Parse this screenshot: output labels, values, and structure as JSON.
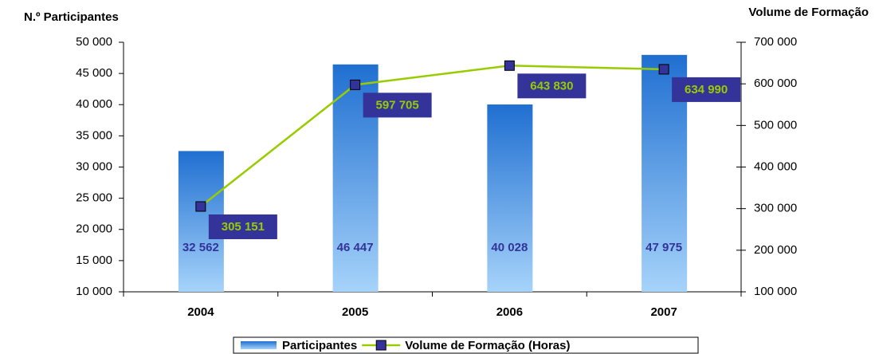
{
  "chart_data": {
    "type": "combo",
    "y_label": "N.º Participantes",
    "y2_label": "Volume de Formação",
    "categories": [
      "2004",
      "2005",
      "2006",
      "2007"
    ],
    "series": [
      {
        "name": "Participantes",
        "type": "bar",
        "color": "#1f6fd1",
        "values": [
          32562,
          46447,
          40028,
          47975
        ],
        "value_labels": [
          "32 562",
          "46 447",
          "40 028",
          "47 975"
        ]
      },
      {
        "name": "Volume de Formação (Horas)",
        "type": "line",
        "axis": "y2",
        "color": "#99cc00",
        "marker_color": "#333399",
        "values": [
          305151,
          597705,
          643830,
          634990
        ],
        "value_labels": [
          "305 151",
          "597 705",
          "643 830",
          "634 990"
        ]
      }
    ],
    "ylim": [
      10000,
      50000
    ],
    "yticks": [
      {
        "value": 10000,
        "label": "10 000"
      },
      {
        "value": 15000,
        "label": "15 000"
      },
      {
        "value": 20000,
        "label": "20 000"
      },
      {
        "value": 25000,
        "label": "25 000"
      },
      {
        "value": 30000,
        "label": "30 000"
      },
      {
        "value": 35000,
        "label": "35 000"
      },
      {
        "value": 40000,
        "label": "40 000"
      },
      {
        "value": 45000,
        "label": "45 000"
      },
      {
        "value": 50000,
        "label": "50 000"
      }
    ],
    "y2lim": [
      100000,
      700000
    ],
    "y2ticks": [
      {
        "value": 100000,
        "label": "100 000"
      },
      {
        "value": 200000,
        "label": "200 000"
      },
      {
        "value": 300000,
        "label": "300 000"
      },
      {
        "value": 400000,
        "label": "400 000"
      },
      {
        "value": 500000,
        "label": "500 000"
      },
      {
        "value": 600000,
        "label": "600 000"
      },
      {
        "value": 700000,
        "label": "700 000"
      }
    ]
  }
}
